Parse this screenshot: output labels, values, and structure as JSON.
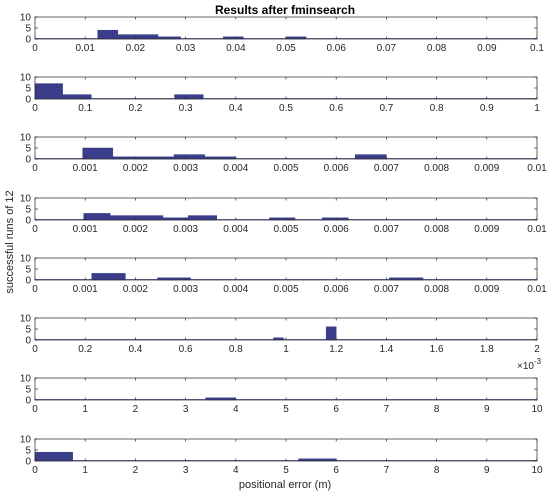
{
  "chart_data": [
    {
      "type": "bar",
      "xlim": [
        0,
        0.1
      ],
      "ylim": [
        0,
        10
      ],
      "yticks": [
        0,
        5,
        10
      ],
      "xticks": [
        "0",
        "0.01",
        "0.02",
        "0.03",
        "0.04",
        "0.05",
        "0.06",
        "0.07",
        "0.08",
        "0.09",
        "0.1"
      ],
      "bins": [
        {
          "x0": 0.0125,
          "x1": 0.0165,
          "v": 4
        },
        {
          "x0": 0.0165,
          "x1": 0.0245,
          "v": 2
        },
        {
          "x0": 0.0245,
          "x1": 0.029,
          "v": 1
        },
        {
          "x0": 0.0375,
          "x1": 0.0415,
          "v": 1
        },
        {
          "x0": 0.05,
          "x1": 0.054,
          "v": 1
        }
      ]
    },
    {
      "type": "bar",
      "xlim": [
        0,
        1
      ],
      "ylim": [
        0,
        10
      ],
      "yticks": [
        0,
        5,
        10
      ],
      "xticks": [
        "0",
        "0.1",
        "0.2",
        "0.3",
        "0.4",
        "0.5",
        "0.6",
        "0.7",
        "0.8",
        "0.9",
        "1"
      ],
      "bins": [
        {
          "x0": 0,
          "x1": 0.055,
          "v": 7
        },
        {
          "x0": 0.055,
          "x1": 0.112,
          "v": 2
        },
        {
          "x0": 0.278,
          "x1": 0.335,
          "v": 2
        }
      ]
    },
    {
      "type": "bar",
      "xlim": [
        0,
        0.01
      ],
      "ylim": [
        0,
        10
      ],
      "yticks": [
        0,
        5,
        10
      ],
      "xticks": [
        "0",
        "0.001",
        "0.002",
        "0.003",
        "0.004",
        "0.005",
        "0.006",
        "0.007",
        "0.008",
        "0.009",
        "0.01"
      ],
      "bins": [
        {
          "x0": 0.00095,
          "x1": 0.00155,
          "v": 5
        },
        {
          "x0": 0.00155,
          "x1": 0.00277,
          "v": 1
        },
        {
          "x0": 0.00277,
          "x1": 0.00338,
          "v": 2
        },
        {
          "x0": 0.00338,
          "x1": 0.004,
          "v": 1
        },
        {
          "x0": 0.00638,
          "x1": 0.007,
          "v": 2
        }
      ]
    },
    {
      "type": "bar",
      "xlim": [
        0,
        0.01
      ],
      "ylim": [
        0,
        10
      ],
      "yticks": [
        0,
        5,
        10
      ],
      "xticks": [
        "0",
        "0.001",
        "0.002",
        "0.003",
        "0.004",
        "0.005",
        "0.006",
        "0.007",
        "0.008",
        "0.009",
        "0.01"
      ],
      "bins": [
        {
          "x0": 0.00097,
          "x1": 0.0015,
          "v": 3
        },
        {
          "x0": 0.0015,
          "x1": 0.00255,
          "v": 2
        },
        {
          "x0": 0.00255,
          "x1": 0.003,
          "v": 1
        },
        {
          "x0": 0.003,
          "x1": 0.00305,
          "v": 1
        },
        {
          "x0": 0.00305,
          "x1": 0.00362,
          "v": 2
        },
        {
          "x0": 0.00467,
          "x1": 0.00518,
          "v": 1
        },
        {
          "x0": 0.00572,
          "x1": 0.00624,
          "v": 1
        }
      ]
    },
    {
      "type": "bar",
      "xlim": [
        0,
        0.01
      ],
      "ylim": [
        0,
        10
      ],
      "yticks": [
        0,
        5,
        10
      ],
      "xticks": [
        "0",
        "0.001",
        "0.002",
        "0.003",
        "0.004",
        "0.005",
        "0.006",
        "0.007",
        "0.008",
        "0.009",
        "0.01"
      ],
      "bins": [
        {
          "x0": 0.00113,
          "x1": 0.0018,
          "v": 3
        },
        {
          "x0": 0.00244,
          "x1": 0.0031,
          "v": 1
        },
        {
          "x0": 0.00706,
          "x1": 0.00773,
          "v": 1
        }
      ]
    },
    {
      "type": "bar",
      "xlim": [
        0,
        2
      ],
      "ylim": [
        0,
        10
      ],
      "exponent": "×10^{-3}",
      "yticks": [
        0,
        5,
        10
      ],
      "xticks": [
        "0",
        "0.2",
        "0.4",
        "0.6",
        "0.8",
        "1",
        "1.2",
        "1.4",
        "1.6",
        "1.8",
        "2"
      ],
      "bins": [
        {
          "x0": 0.95,
          "x1": 0.99,
          "v": 1
        },
        {
          "x0": 1.16,
          "x1": 1.2,
          "v": 6
        }
      ]
    },
    {
      "type": "bar",
      "xlim": [
        0,
        10
      ],
      "ylim": [
        0,
        10
      ],
      "yticks": [
        0,
        5,
        10
      ],
      "xticks": [
        "0",
        "1",
        "2",
        "3",
        "4",
        "5",
        "6",
        "7",
        "8",
        "9",
        "10"
      ],
      "bins": [
        {
          "x0": 3.4,
          "x1": 4.0,
          "v": 1
        }
      ]
    },
    {
      "type": "bar",
      "xlim": [
        0,
        10
      ],
      "ylim": [
        0,
        10
      ],
      "yticks": [
        0,
        5,
        10
      ],
      "xticks": [
        "0",
        "1",
        "2",
        "3",
        "4",
        "5",
        "6",
        "7",
        "8",
        "9",
        "10"
      ],
      "bins": [
        {
          "x0": 0,
          "x1": 0.75,
          "v": 4
        },
        {
          "x0": 5.25,
          "x1": 6.0,
          "v": 1
        }
      ]
    }
  ],
  "figure": {
    "title": "Results after fminsearch",
    "xlabel": "positional error (m)",
    "ylabel": "successful runs of 12",
    "bar_color": "#3a3d8a",
    "axis_color": "#262626"
  }
}
